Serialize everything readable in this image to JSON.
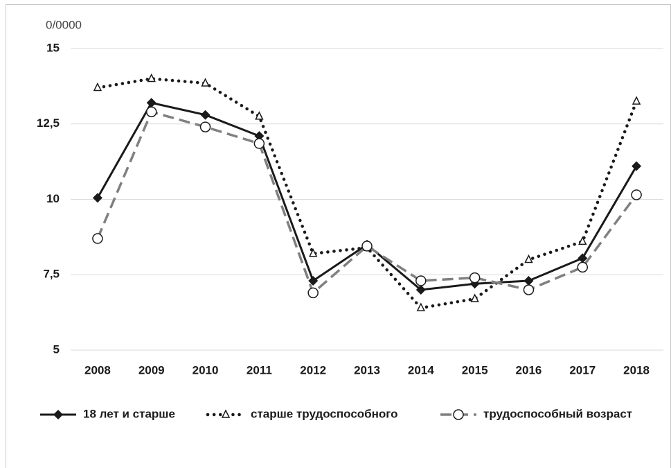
{
  "chart_data": {
    "type": "line",
    "unit_label": "0/0000",
    "categories": [
      "2008",
      "2009",
      "2010",
      "2011",
      "2012",
      "2013",
      "2014",
      "2015",
      "2016",
      "2017",
      "2018"
    ],
    "series": [
      {
        "name": "18 лет и старше",
        "color": "#1a1a1a",
        "line_style": "solid",
        "marker": "diamond",
        "values": [
          10.05,
          13.2,
          12.8,
          12.1,
          7.3,
          8.5,
          7.0,
          7.2,
          7.3,
          8.05,
          11.1
        ]
      },
      {
        "name": "старше трудоспособного",
        "color": "#1a1a1a",
        "line_style": "dotted",
        "marker": "triangle",
        "values": [
          13.7,
          14.0,
          13.85,
          12.75,
          8.2,
          8.4,
          6.4,
          6.7,
          8.0,
          8.6,
          13.25
        ]
      },
      {
        "name": "трудоспособный возраст",
        "color": "#808080",
        "line_style": "dashed",
        "marker": "circle",
        "values": [
          8.7,
          12.9,
          12.4,
          11.85,
          6.9,
          8.45,
          7.3,
          7.4,
          7.0,
          7.75,
          10.15
        ]
      }
    ],
    "ylim": [
      5,
      15
    ],
    "yticks": [
      5,
      {
        "value": 7.5,
        "label": "7,5"
      },
      10,
      {
        "value": 12.5,
        "label": "12,5"
      },
      15
    ],
    "grid": true,
    "legend": "bottom"
  }
}
